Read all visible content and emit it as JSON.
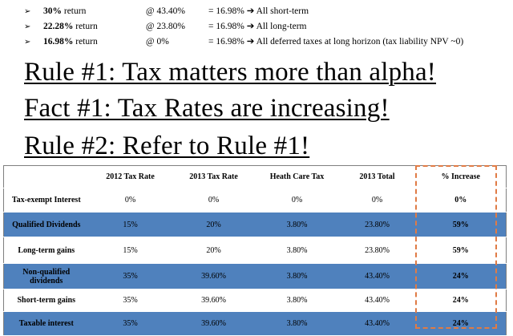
{
  "bullets": [
    {
      "arrow": "➢",
      "ret_bold": "30%",
      "ret_rest": " return",
      "rate": "@ 43.40%",
      "eq": "= 16.98% ➔ All short-term"
    },
    {
      "arrow": "➢",
      "ret_bold": "22.28%",
      "ret_rest": " return",
      "rate": "@ 23.80%",
      "eq": "= 16.98% ➔ All long-term"
    },
    {
      "arrow": "➢",
      "ret_bold": "16.98%",
      "ret_rest": " return",
      "rate": "@ 0%",
      "eq": "= 16.98% ➔ All deferred taxes at long horizon (tax liability NPV ~0)"
    }
  ],
  "rules": {
    "rule1": "Rule #1: Tax matters more than alpha!",
    "fact1": "Fact #1: Tax Rates are increasing!",
    "rule2": "Rule #2: Refer to Rule #1!"
  },
  "table": {
    "headers": [
      "",
      "2012 Tax Rate",
      "2013 Tax Rate",
      "Heath Care Tax",
      "2013 Total",
      "% Increase"
    ],
    "rows": [
      {
        "label": "Tax-exempt Interest",
        "c2012": "0%",
        "c2013": "0%",
        "health": "0%",
        "total": "0%",
        "increase": "0%"
      },
      {
        "label": "Qualified Dividends",
        "c2012": "15%",
        "c2013": "20%",
        "health": "3.80%",
        "total": "23.80%",
        "increase": "59%"
      },
      {
        "label": "Long-term gains",
        "c2012": "15%",
        "c2013": "20%",
        "health": "3.80%",
        "total": "23.80%",
        "increase": "59%"
      },
      {
        "label": "Non-qualified dividends",
        "c2012": "35%",
        "c2013": "39.60%",
        "health": "3.80%",
        "total": "43.40%",
        "increase": "24%"
      },
      {
        "label": "Short-term gains",
        "c2012": "35%",
        "c2013": "39.60%",
        "health": "3.80%",
        "total": "43.40%",
        "increase": "24%"
      },
      {
        "label": "Taxable interest",
        "c2012": "35%",
        "c2013": "39.60%",
        "health": "3.80%",
        "total": "43.40%",
        "increase": "24%"
      }
    ]
  },
  "colors": {
    "blue_row": "#4f81bd",
    "dash_box": "#e07b45"
  }
}
